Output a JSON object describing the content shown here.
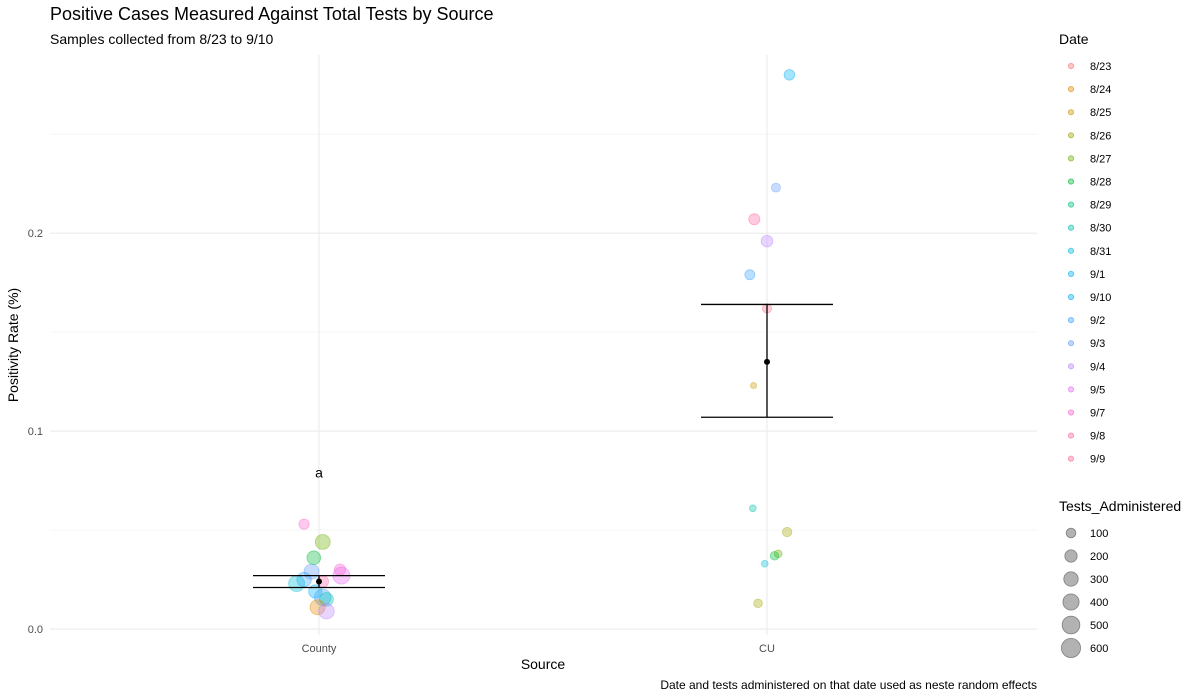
{
  "chart_data": {
    "type": "scatter",
    "title": "Positive Cases Measured Against Total Tests by Source",
    "subtitle": "Samples collected from 8/23 to 9/10",
    "caption": "Date and tests administered on that date used as neste random effects",
    "xlabel": "Source",
    "ylabel": "Positivity Rate (%)",
    "categories": [
      "County",
      "CU"
    ],
    "ylim": [
      -0.003,
      0.29
    ],
    "yticks": [
      0.0,
      0.1,
      0.2
    ],
    "ytick_labels": [
      "0.0",
      "0.1",
      "0.2"
    ],
    "grid": true,
    "annotations": [
      {
        "text": "a",
        "category": "County",
        "y": 0.079
      }
    ],
    "color_legend": {
      "title": "Date",
      "position": "right",
      "entries": [
        {
          "label": "8/23",
          "color": "#F8766D"
        },
        {
          "label": "8/24",
          "color": "#E58700"
        },
        {
          "label": "8/25",
          "color": "#C99800"
        },
        {
          "label": "8/26",
          "color": "#A3A500"
        },
        {
          "label": "8/27",
          "color": "#6BB100"
        },
        {
          "label": "8/28",
          "color": "#00BA38"
        },
        {
          "label": "8/29",
          "color": "#00BF7D"
        },
        {
          "label": "8/30",
          "color": "#00C0AF"
        },
        {
          "label": "8/31",
          "color": "#00BCD8"
        },
        {
          "label": "9/1",
          "color": "#00B0F6"
        },
        {
          "label": "9/10",
          "color": "#00B0F6"
        },
        {
          "label": "9/2",
          "color": "#35A2FF"
        },
        {
          "label": "9/3",
          "color": "#619CFF"
        },
        {
          "label": "9/4",
          "color": "#B983FF"
        },
        {
          "label": "9/5",
          "color": "#E76BF3"
        },
        {
          "label": "9/7",
          "color": "#FD61D1"
        },
        {
          "label": "9/8",
          "color": "#FF67A4"
        },
        {
          "label": "9/9",
          "color": "#FF6C91"
        }
      ]
    },
    "size_legend": {
      "title": "Tests_Administered",
      "position": "right",
      "values": [
        100,
        200,
        300,
        400,
        500,
        600
      ]
    },
    "series": [
      {
        "category": "County",
        "points": [
          {
            "x": "County",
            "jitter": -0.2,
            "y": 0.053,
            "size": 120,
            "date": "9/7"
          },
          {
            "x": "County",
            "jitter": 0.05,
            "y": 0.044,
            "size": 320,
            "date": "8/27"
          },
          {
            "x": "County",
            "jitter": -0.07,
            "y": 0.036,
            "size": 260,
            "date": "8/28"
          },
          {
            "x": "County",
            "jitter": 0.28,
            "y": 0.03,
            "size": 150,
            "date": "9/7"
          },
          {
            "x": "County",
            "jitter": -0.1,
            "y": 0.029,
            "size": 330,
            "date": "9/3"
          },
          {
            "x": "County",
            "jitter": 0.3,
            "y": 0.027,
            "size": 450,
            "date": "9/5"
          },
          {
            "x": "County",
            "jitter": 0.05,
            "y": 0.024,
            "size": 170,
            "date": "9/8"
          },
          {
            "x": "County",
            "jitter": -0.2,
            "y": 0.025,
            "size": 300,
            "date": "9/2"
          },
          {
            "x": "County",
            "jitter": -0.3,
            "y": 0.023,
            "size": 380,
            "date": "8/31"
          },
          {
            "x": "County",
            "jitter": -0.05,
            "y": 0.019,
            "size": 240,
            "date": "9/10"
          },
          {
            "x": "County",
            "jitter": 0.05,
            "y": 0.016,
            "size": 420,
            "date": "9/2"
          },
          {
            "x": "County",
            "jitter": 0.1,
            "y": 0.015,
            "size": 260,
            "date": "8/30"
          },
          {
            "x": "County",
            "jitter": -0.02,
            "y": 0.011,
            "size": 330,
            "date": "8/24"
          },
          {
            "x": "County",
            "jitter": 0.1,
            "y": 0.009,
            "size": 360,
            "date": "9/4"
          }
        ]
      },
      {
        "category": "CU",
        "points": [
          {
            "x": "CU",
            "jitter": 0.3,
            "y": 0.28,
            "size": 130,
            "date": "9/1"
          },
          {
            "x": "CU",
            "jitter": 0.12,
            "y": 0.223,
            "size": 80,
            "date": "9/3"
          },
          {
            "x": "CU",
            "jitter": -0.17,
            "y": 0.207,
            "size": 150,
            "date": "9/8"
          },
          {
            "x": "CU",
            "jitter": 0.0,
            "y": 0.196,
            "size": 170,
            "date": "9/4"
          },
          {
            "x": "CU",
            "jitter": -0.23,
            "y": 0.179,
            "size": 110,
            "date": "9/2"
          },
          {
            "x": "CU",
            "jitter": 0.0,
            "y": 0.162,
            "size": 90,
            "date": "9/9"
          },
          {
            "x": "CU",
            "jitter": -0.18,
            "y": 0.123,
            "size": 20,
            "date": "8/25"
          },
          {
            "x": "CU",
            "jitter": -0.19,
            "y": 0.061,
            "size": 30,
            "date": "8/30"
          },
          {
            "x": "CU",
            "jitter": 0.27,
            "y": 0.049,
            "size": 90,
            "date": "8/26"
          },
          {
            "x": "CU",
            "jitter": 0.15,
            "y": 0.038,
            "size": 50,
            "date": "8/27"
          },
          {
            "x": "CU",
            "jitter": 0.1,
            "y": 0.037,
            "size": 70,
            "date": "8/28"
          },
          {
            "x": "CU",
            "jitter": -0.03,
            "y": 0.033,
            "size": 30,
            "date": "8/31"
          },
          {
            "x": "CU",
            "jitter": -0.12,
            "y": 0.013,
            "size": 70,
            "date": "8/26"
          }
        ]
      }
    ],
    "estimates": [
      {
        "category": "County",
        "estimate": 0.024,
        "lower": 0.021,
        "upper": 0.027
      },
      {
        "category": "CU",
        "estimate": 0.135,
        "lower": 0.107,
        "upper": 0.164
      }
    ]
  }
}
